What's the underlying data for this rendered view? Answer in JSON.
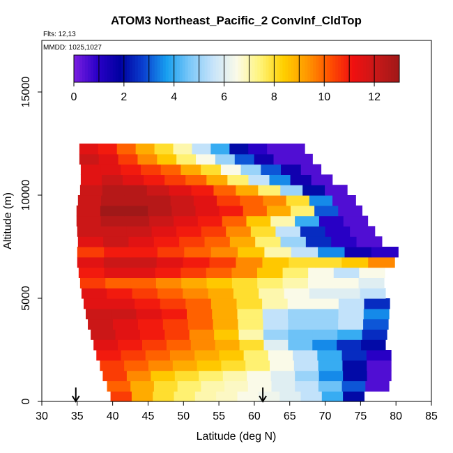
{
  "chart_data": {
    "type": "heatmap",
    "title": "ATOM3 Northeast_Pacific_2 ConvInf_CldTop",
    "annotations": [
      "Flts: 12,13",
      "MMDD: 1025,1027"
    ],
    "xlabel": "Latitude (deg N)",
    "ylabel": "Altitude (m)",
    "xlim": [
      30,
      85
    ],
    "ylim": [
      0,
      17500
    ],
    "x_ticks": [
      30,
      35,
      40,
      45,
      50,
      55,
      60,
      65,
      70,
      75,
      80,
      85
    ],
    "x_tick_labels": [
      "30",
      "35",
      "40",
      "45",
      "50",
      "55",
      "60",
      "65",
      "70",
      "75",
      "80",
      "85"
    ],
    "y_ticks": [
      0,
      5000,
      10000,
      15000
    ],
    "y_tick_labels": [
      "0",
      "5000",
      "10000",
      "15000"
    ],
    "colorbar": {
      "range": [
        0,
        13
      ],
      "ticks": [
        0,
        2,
        4,
        6,
        8,
        10,
        12
      ],
      "tick_labels": [
        "0",
        "2",
        "4",
        "6",
        "8",
        "10",
        "12"
      ],
      "colors": [
        "#7b1fe0",
        "#2b00c8",
        "#0000a0",
        "#0a40d0",
        "#18a0f0",
        "#7cc8f8",
        "#c8e4fa",
        "#fafae8",
        "#fff47a",
        "#ffd000",
        "#ff9a00",
        "#ff5000",
        "#f01010",
        "#c81818",
        "#a01818"
      ]
    },
    "arrows_x": [
      34.8,
      61.2
    ],
    "bands": [
      {
        "alt": 250,
        "lat_start": 39.7,
        "lat_end": 75.5,
        "values": [
          10.5,
          9.0,
          8.0,
          7.5,
          7.0,
          6.8,
          6.5,
          6.3,
          6.0,
          5.5,
          4.0,
          2.0
        ]
      },
      {
        "alt": 750,
        "lat_start": 39.2,
        "lat_end": 79.0,
        "values": [
          10.0,
          9.0,
          8.0,
          7.5,
          7.0,
          6.8,
          6.5,
          6.0,
          5.5,
          4.5,
          3.0,
          0.5
        ]
      },
      {
        "alt": 1250,
        "lat_start": 38.6,
        "lat_end": 79.3,
        "values": [
          10.5,
          9.5,
          8.5,
          8.0,
          7.5,
          7.0,
          6.5,
          6.0,
          5.0,
          3.5,
          2.0,
          0.5
        ]
      },
      {
        "alt": 1750,
        "lat_start": 38.2,
        "lat_end": 79.3,
        "values": [
          10.5,
          10.0,
          9.5,
          9.0,
          8.5,
          8.0,
          7.5,
          6.5,
          5.5,
          4.0,
          2.0,
          0.5
        ]
      },
      {
        "alt": 2250,
        "lat_start": 37.7,
        "lat_end": 79.3,
        "values": [
          11.0,
          10.5,
          10.0,
          9.5,
          9.0,
          8.5,
          7.5,
          6.5,
          5.5,
          4.0,
          2.5,
          1.0
        ]
      },
      {
        "alt": 2750,
        "lat_start": 37.3,
        "lat_end": 78.5,
        "values": [
          11.5,
          11.0,
          10.5,
          10.0,
          9.5,
          9.0,
          8.0,
          6.0,
          4.5,
          3.5,
          2.5,
          2.0
        ]
      },
      {
        "alt": 3250,
        "lat_start": 36.9,
        "lat_end": 78.7,
        "values": [
          12.0,
          11.5,
          11.0,
          10.5,
          9.5,
          8.5,
          7.0,
          5.0,
          4.5,
          4.5,
          4.0,
          2.5
        ]
      },
      {
        "alt": 3750,
        "lat_start": 36.5,
        "lat_end": 78.9,
        "values": [
          12.0,
          11.5,
          11.0,
          10.5,
          10.0,
          9.0,
          7.5,
          5.5,
          5.0,
          5.0,
          5.5,
          3.0
        ]
      },
      {
        "alt": 4250,
        "lat_start": 36.2,
        "lat_end": 79.0,
        "values": [
          12.0,
          12.0,
          11.5,
          11.0,
          10.0,
          9.0,
          7.5,
          5.5,
          5.0,
          5.0,
          5.5,
          3.5
        ]
      },
      {
        "alt": 4750,
        "lat_start": 35.9,
        "lat_end": 79.1,
        "values": [
          11.5,
          11.5,
          11.0,
          10.5,
          10.0,
          9.0,
          8.0,
          7.0,
          6.5,
          6.5,
          5.5,
          2.5
        ]
      },
      {
        "alt": 5250,
        "lat_start": 35.6,
        "lat_end": 78.5,
        "values": [
          11.5,
          11.0,
          10.5,
          10.0,
          9.5,
          9.0,
          8.0,
          7.0,
          6.5,
          6.0,
          6.0,
          5.5
        ]
      },
      {
        "alt": 5750,
        "lat_start": 35.4,
        "lat_end": 78.3,
        "values": [
          10.5,
          10.0,
          10.0,
          9.5,
          9.0,
          8.5,
          8.0,
          7.5,
          7.0,
          6.5,
          6.5,
          6.0
        ]
      },
      {
        "alt": 6250,
        "lat_start": 35.2,
        "lat_end": 78.4,
        "values": [
          11.0,
          11.5,
          11.5,
          11.0,
          10.5,
          10.0,
          9.5,
          8.5,
          7.5,
          6.5,
          5.5,
          6.5
        ]
      },
      {
        "alt": 6750,
        "lat_start": 35.0,
        "lat_end": 79.8,
        "values": [
          11.5,
          12.0,
          12.0,
          11.5,
          11.0,
          10.5,
          9.5,
          8.5,
          8.0,
          8.0,
          8.5,
          9.5
        ]
      },
      {
        "alt": 7250,
        "lat_start": 35.0,
        "lat_end": 80.3,
        "values": [
          10.5,
          11.0,
          11.0,
          10.5,
          10.0,
          9.5,
          8.5,
          7.0,
          5.5,
          3.5,
          1.5,
          1.0
        ]
      },
      {
        "alt": 7750,
        "lat_start": 35.1,
        "lat_end": 78.0,
        "values": [
          11.5,
          12.0,
          11.5,
          11.0,
          10.5,
          10.0,
          9.0,
          7.5,
          5.0,
          2.5,
          1.0,
          0.5
        ]
      },
      {
        "alt": 8250,
        "lat_start": 35.0,
        "lat_end": 77.0,
        "values": [
          12.0,
          12.0,
          12.0,
          11.5,
          11.0,
          10.5,
          9.5,
          8.0,
          5.5,
          2.5,
          1.0,
          0.5
        ]
      },
      {
        "alt": 8750,
        "lat_start": 34.9,
        "lat_end": 76.0,
        "values": [
          12.0,
          12.5,
          12.5,
          12.0,
          11.5,
          11.0,
          10.0,
          8.5,
          7.0,
          4.0,
          1.0,
          0.5
        ]
      },
      {
        "alt": 9250,
        "lat_start": 34.9,
        "lat_end": 75.2,
        "values": [
          12.0,
          13.0,
          13.0,
          12.5,
          12.0,
          11.5,
          11.0,
          10.0,
          9.0,
          7.5,
          3.0,
          0.5
        ]
      },
      {
        "alt": 9750,
        "lat_start": 35.1,
        "lat_end": 74.3,
        "values": [
          12.0,
          12.5,
          12.5,
          12.5,
          12.0,
          11.5,
          10.5,
          10.0,
          9.5,
          8.0,
          3.5,
          0.5
        ]
      },
      {
        "alt": 10250,
        "lat_start": 35.4,
        "lat_end": 73.1,
        "values": [
          12.0,
          12.5,
          12.5,
          12.0,
          11.5,
          11.0,
          10.0,
          9.0,
          7.5,
          5.0,
          2.0,
          0.5
        ]
      },
      {
        "alt": 10750,
        "lat_start": 35.5,
        "lat_end": 71.0,
        "values": [
          11.5,
          12.0,
          11.5,
          11.0,
          10.5,
          10.0,
          9.0,
          7.5,
          5.5,
          3.5,
          1.5,
          0.5
        ]
      },
      {
        "alt": 11250,
        "lat_start": 35.5,
        "lat_end": 69.4,
        "values": [
          11.5,
          11.5,
          11.0,
          10.5,
          10.0,
          9.0,
          8.0,
          6.5,
          5.0,
          3.0,
          1.5,
          0.5
        ]
      },
      {
        "alt": 11750,
        "lat_start": 35.3,
        "lat_end": 68.2,
        "values": [
          12.0,
          11.5,
          10.5,
          9.5,
          8.5,
          7.5,
          6.5,
          5.0,
          3.0,
          1.5,
          0.5,
          0.5
        ]
      },
      {
        "alt": 12250,
        "lat_start": 35.3,
        "lat_end": 67.1,
        "values": [
          11.5,
          11.0,
          10.0,
          9.0,
          8.0,
          7.0,
          5.5,
          4.0,
          2.0,
          1.0,
          0.5,
          0.5
        ]
      }
    ]
  }
}
